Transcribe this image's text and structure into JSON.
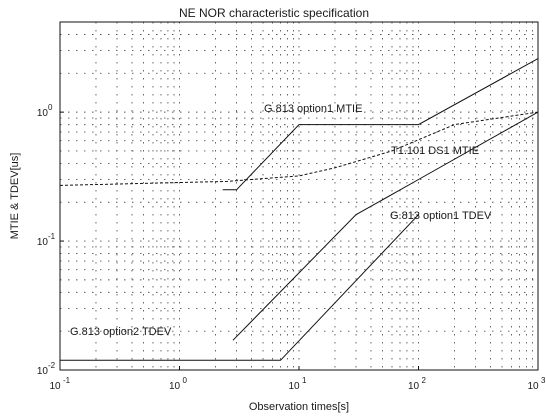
{
  "chart_data": {
    "type": "line",
    "title": "NE NOR characteristic specification",
    "xlabel": "Observation times[s]",
    "ylabel": "MTIE & TDEV[us]",
    "x_scale": "log",
    "y_scale": "log",
    "xlim": [
      0.1,
      1000
    ],
    "ylim": [
      0.01,
      5
    ],
    "grid": true,
    "x_ticks": [
      {
        "base": "10",
        "exp": "-1",
        "value": 0.1
      },
      {
        "base": "10",
        "exp": "0",
        "value": 1
      },
      {
        "base": "10",
        "exp": "1",
        "value": 10
      },
      {
        "base": "10",
        "exp": "2",
        "value": 100
      },
      {
        "base": "10",
        "exp": "3",
        "value": 1000
      }
    ],
    "y_ticks": [
      {
        "base": "10",
        "exp": "-2",
        "value": 0.01
      },
      {
        "base": "10",
        "exp": "-1",
        "value": 0.1
      },
      {
        "base": "10",
        "exp": "0",
        "value": 1
      }
    ],
    "series": [
      {
        "name": "G.813 option1 MTIE",
        "style": "solid",
        "x": [
          2.3,
          3,
          10,
          100,
          1000
        ],
        "y": [
          0.25,
          0.25,
          0.8,
          0.8,
          2.6
        ]
      },
      {
        "name": "T1.101 DS1 MTIE",
        "style": "dashed",
        "x": [
          0.1,
          2.5,
          10,
          20,
          60,
          200,
          1000
        ],
        "y": [
          0.27,
          0.29,
          0.32,
          0.37,
          0.5,
          0.8,
          1.0
        ]
      },
      {
        "name": "G.813 option1 TDEV",
        "style": "solid",
        "x": [
          2.8,
          30,
          100,
          1000
        ],
        "y": [
          0.017,
          0.16,
          0.3,
          1.0
        ]
      },
      {
        "name": "G.813 option2 TDEV",
        "style": "solid",
        "x": [
          0.1,
          7,
          100
        ],
        "y": [
          0.0119,
          0.0119,
          0.16
        ]
      }
    ]
  }
}
